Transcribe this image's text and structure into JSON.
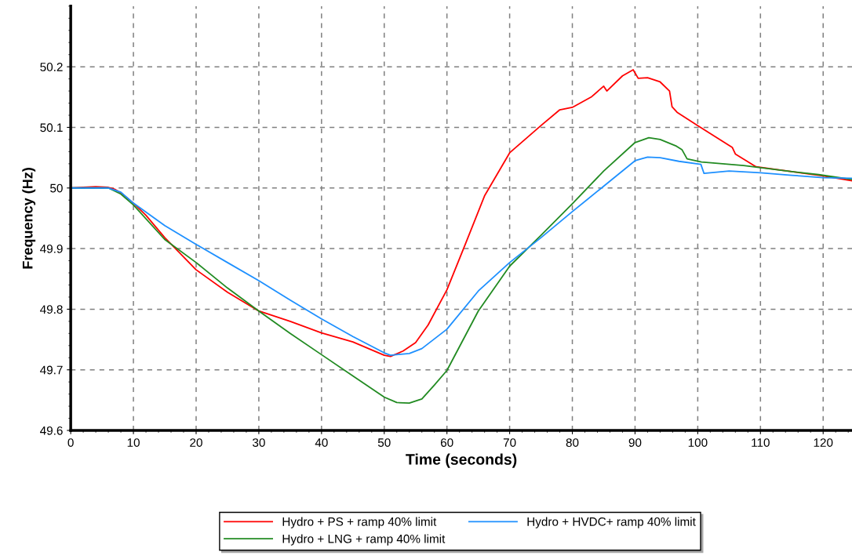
{
  "chart_data": {
    "type": "line",
    "xlabel": "Time (seconds)",
    "ylabel": "Frequency (Hz)",
    "xlim": [
      0,
      124.6
    ],
    "ylim": [
      49.6,
      50.3
    ],
    "xticks": [
      0,
      10,
      20,
      30,
      40,
      50,
      60,
      70,
      80,
      90,
      100,
      110,
      120
    ],
    "yticks": [
      49.6,
      49.7,
      49.8,
      49.9,
      50,
      50.1,
      50.2
    ],
    "grid": true,
    "legend": "bottom",
    "line_style": "solid",
    "marker": "none",
    "series": [
      {
        "name": "Hydro + PS + ramp 40% limit",
        "color": "#ff0000",
        "x": [
          0,
          4,
          6,
          7,
          8,
          10,
          12,
          15,
          20,
          25,
          30,
          35,
          40,
          45,
          50,
          51,
          53,
          55,
          57,
          60,
          63,
          66,
          70,
          75,
          78,
          80,
          83,
          85,
          85.5,
          88,
          89.7,
          90.5,
          92,
          94,
          95.5,
          95.9,
          96.7,
          100,
          105.5,
          106,
          109.3,
          115,
          120,
          124.6
        ],
        "values": [
          50,
          50.002,
          50.001,
          49.998,
          49.992,
          49.975,
          49.955,
          49.918,
          49.865,
          49.828,
          49.797,
          49.78,
          49.761,
          49.746,
          49.724,
          49.722,
          49.731,
          49.745,
          49.774,
          49.832,
          49.909,
          49.987,
          50.058,
          50.103,
          50.129,
          50.133,
          50.15,
          50.168,
          50.16,
          50.185,
          50.195,
          50.181,
          50.182,
          50.175,
          50.16,
          50.134,
          50.125,
          50.103,
          50.067,
          50.056,
          50.035,
          50.027,
          50.02,
          50.012
        ]
      },
      {
        "name": "Hydro + LNG + ramp 40% limit",
        "color": "#228b22",
        "x": [
          0,
          6,
          8,
          10,
          15,
          20,
          25,
          30,
          35,
          40,
          45,
          50,
          52,
          54,
          56,
          58,
          60,
          65,
          70,
          75,
          80,
          85,
          90,
          92.2,
          94,
          96.6,
          97.5,
          98.3,
          100.6,
          107.3,
          115,
          119.3,
          124.6
        ],
        "values": [
          50,
          50,
          49.99,
          49.972,
          49.915,
          49.877,
          49.835,
          49.797,
          49.76,
          49.725,
          49.69,
          49.655,
          49.646,
          49.645,
          49.652,
          49.675,
          49.699,
          49.797,
          49.871,
          49.922,
          49.974,
          50.028,
          50.075,
          50.083,
          50.08,
          50.069,
          50.063,
          50.048,
          50.043,
          50.037,
          50.027,
          50.022,
          50.014
        ]
      },
      {
        "name": "Hydro + HVDC+ ramp 40% limit",
        "color": "#1e90ff",
        "x": [
          0,
          6,
          8,
          10,
          15,
          20,
          25,
          30,
          35,
          40,
          45,
          50,
          51,
          54,
          56,
          60,
          65,
          70,
          75,
          80,
          85,
          90,
          92,
          94,
          97,
          100.5,
          101,
          102,
          105,
          110,
          115,
          120,
          124.6
        ],
        "values": [
          50,
          50,
          49.993,
          49.975,
          49.938,
          49.907,
          49.877,
          49.847,
          49.815,
          49.784,
          49.755,
          49.728,
          49.724,
          49.727,
          49.735,
          49.767,
          49.83,
          49.877,
          49.918,
          49.961,
          50.003,
          50.045,
          50.051,
          50.05,
          50.044,
          50.039,
          50.024,
          50.025,
          50.028,
          50.025,
          50.021,
          50.017,
          50.016
        ]
      }
    ]
  }
}
